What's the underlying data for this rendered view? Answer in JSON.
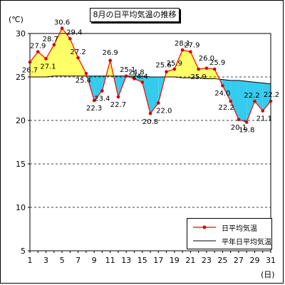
{
  "title": "8月の日平均気温の推移",
  "y_unit": "(℃)",
  "x_unit": "(日)",
  "legend": {
    "daily_label": "日平均気温",
    "normal_label": "平年日平均気温"
  },
  "colors": {
    "daily_line": "#ff0000",
    "daily_marker": "#cc0000",
    "normal_line": "#000000",
    "above_fill": "#ffff66",
    "below_fill": "#33ccee",
    "grid": "#000000"
  },
  "chart_data": {
    "type": "line",
    "xlabel": "(日)",
    "ylabel": "(℃)",
    "xlim": [
      1,
      31
    ],
    "ylim": [
      5,
      30
    ],
    "y_ticks": [
      5,
      10,
      15,
      20,
      25,
      30
    ],
    "x_ticks": [
      1,
      3,
      5,
      7,
      9,
      11,
      13,
      15,
      17,
      19,
      21,
      23,
      25,
      27,
      29,
      31
    ],
    "grid": "horizontal dashed at 10, 15, 20, 25",
    "legend_position": "bottom-right",
    "x": [
      1,
      2,
      3,
      4,
      5,
      6,
      7,
      8,
      9,
      10,
      11,
      12,
      13,
      14,
      15,
      16,
      17,
      18,
      19,
      20,
      21,
      22,
      23,
      24,
      25,
      26,
      27,
      28,
      29,
      30,
      31
    ],
    "series": [
      {
        "name": "日平均気温",
        "values": [
          26.7,
          27.9,
          27.1,
          28.7,
          30.6,
          29.4,
          27.2,
          25.4,
          22.3,
          23.4,
          26.9,
          22.7,
          25.1,
          24.8,
          24.4,
          20.8,
          22.0,
          25.6,
          25.9,
          28.1,
          27.9,
          25.9,
          26.0,
          25.9,
          24.0,
          22.2,
          20.1,
          19.8,
          22.2,
          21.1,
          22.2
        ],
        "data_labels": [
          "26.7",
          "27.9",
          "27.1",
          "28.7",
          "30.6",
          "29.4",
          "27.2",
          "25.4",
          "22.3",
          "23.4",
          "26.9",
          "22.7",
          "25.1",
          "24.8",
          "24.4",
          "20.8",
          "22.0",
          "25.6",
          "25.9",
          "28.1",
          "27.9",
          "25.9",
          "26.0",
          "25.9",
          "24.0",
          "22.2",
          "20.1",
          "19.8",
          "22.2",
          "21.1",
          "22.2"
        ]
      },
      {
        "name": "平年日平均気温",
        "values": [
          25.0,
          25.0,
          25.0,
          25.1,
          25.1,
          25.1,
          25.1,
          25.1,
          25.1,
          25.1,
          25.1,
          25.1,
          25.1,
          25.1,
          25.1,
          25.0,
          25.0,
          25.0,
          25.0,
          24.9,
          24.9,
          24.9,
          24.8,
          24.8,
          24.7,
          24.6,
          24.6,
          24.5,
          24.4,
          24.3,
          24.2
        ]
      }
    ]
  }
}
